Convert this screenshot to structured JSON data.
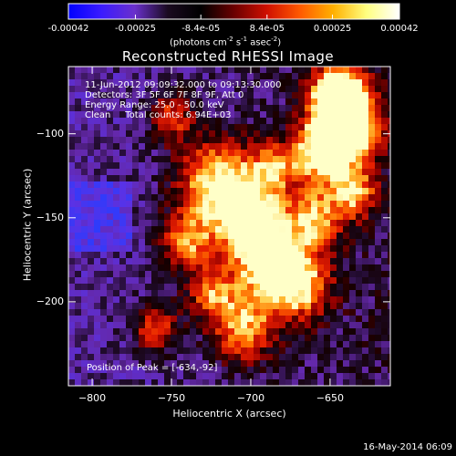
{
  "colorbar": {
    "ticks": [
      "-0.00042",
      "-0.00025",
      "-8.4e-05",
      "8.4e-05",
      "0.00025",
      "0.00042"
    ],
    "tick_values": [
      -0.00042,
      -0.00025,
      -8.4e-05,
      8.4e-05,
      0.00025,
      0.00042
    ],
    "range": [
      -0.00042,
      0.00042
    ],
    "units_main": "(photons cm",
    "units_sup1": "-2",
    "units_mid": " s",
    "units_sup2": "-1",
    "units_end": " asec",
    "units_sup3": "-2",
    "units_close": ")",
    "colors": [
      "#0000ff",
      "#3b1bff",
      "#6a30cc",
      "#1a0a20",
      "#000000",
      "#6a0000",
      "#d01000",
      "#ff5a00",
      "#ffb000",
      "#ffff80",
      "#ffffff"
    ]
  },
  "header": {
    "title": "Reconstructed RHESSI Image"
  },
  "annotations": {
    "line1": "11-Jun-2012 09:09:32.000 to 09:13:30.000",
    "line2": "Detectors: 3F 5F 6F 7F 8F 9F, Att 0",
    "line3": "Energy Range: 25.0 - 50.0 keV",
    "line4": "Clean     Total counts: 6.94E+03",
    "peak": "Position of Peak = [-634,-92]"
  },
  "footer": {
    "date": "16-May-2014 06:09"
  },
  "chart_data": {
    "type": "heatmap",
    "title": "Reconstructed RHESSI Image",
    "xlabel": "Heliocentric X (arcsec)",
    "ylabel": "Heliocentric Y (arcsec)",
    "xlim": [
      -815,
      -612
    ],
    "ylim": [
      -250,
      -60
    ],
    "xticks": [
      -800,
      -750,
      -700,
      -650
    ],
    "yticks": [
      -100,
      -150,
      -200
    ],
    "xtick_labels": [
      "−800",
      "−750",
      "−700",
      "−650"
    ],
    "ytick_labels": [
      "−100",
      "−150",
      "−200"
    ],
    "peak": [
      -634,
      -92
    ]
  }
}
